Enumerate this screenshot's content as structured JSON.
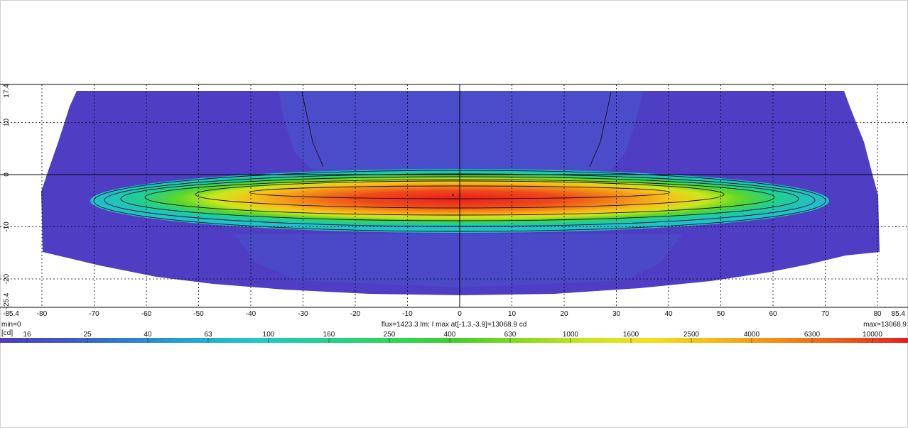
{
  "chart_data": {
    "type": "heatmap",
    "title": "",
    "xlabel": "",
    "ylabel": "",
    "xlim": [
      -85.4,
      85.4
    ],
    "ylim": [
      -25.4,
      17.4
    ],
    "x_ticks": [
      -85.4,
      -80,
      -70,
      -60,
      -50,
      -40,
      -30,
      -20,
      -10,
      0,
      10,
      20,
      30,
      40,
      50,
      60,
      70,
      80,
      85.4
    ],
    "y_ticks": [
      17.4,
      10,
      0,
      -10,
      -20,
      -25.4
    ],
    "grid": true,
    "scale": "log",
    "unit": "[cd]",
    "colorbar": {
      "labels": [
        "16",
        "25",
        "40",
        "63",
        "100",
        "160",
        "250",
        "400",
        "630",
        "1000",
        "1600",
        "2500",
        "4000",
        "6300",
        "10000"
      ],
      "colors": [
        "#4e3bc4",
        "#3f57c8",
        "#2f7fd0",
        "#22a8d6",
        "#22c9c4",
        "#22d08e",
        "#2ed65a",
        "#3fd02e",
        "#86d81e",
        "#c8e61c",
        "#f2e01c",
        "#f6b81a",
        "#f48a18",
        "#ef5818",
        "#e81f1f"
      ]
    },
    "contour_levels": [
      16,
      100,
      250,
      630,
      1600,
      4000,
      10000
    ],
    "hotspot": {
      "x": -1.3,
      "y": -3.9,
      "value": 13068.9
    },
    "min_label": "min=0",
    "max_label": "max=13068.9",
    "flux_label": "flux=1423.3 lm; I max at[-1.3,-3.9]=13068.9 cd"
  }
}
